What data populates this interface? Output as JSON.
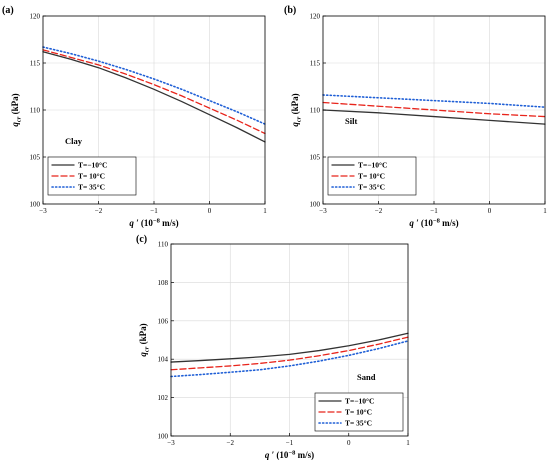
{
  "chart_data": [
    {
      "type": "line",
      "panel_label": "(a)",
      "annotation": "Clay",
      "xlabel_main": "q",
      "xlabel_rest": " (10",
      "xlabel_exp": "−8",
      "xlabel_unit": " m/s)",
      "ylabel_main": "q",
      "ylabel_sub": "cr",
      "ylabel_unit": " (kPa)",
      "xlim": [
        -3,
        1
      ],
      "ylim": [
        100,
        120
      ],
      "xticks": [
        -3,
        -2,
        -1,
        0,
        1
      ],
      "yticks": [
        100,
        105,
        110,
        115,
        120
      ],
      "xtick_labels": [
        "−3",
        "−2",
        "−1",
        "0",
        "1"
      ],
      "ytick_labels": [
        "100",
        "105",
        "110",
        "115",
        "120"
      ],
      "grid": true,
      "legend_position": "bottom-left",
      "x": [
        -3,
        -2.5,
        -2,
        -1.5,
        -1,
        -0.5,
        0,
        0.5,
        1
      ],
      "series": [
        {
          "name": "T=−10°C",
          "color": "#333333",
          "dash": "solid",
          "values": [
            116.2,
            115.4,
            114.5,
            113.4,
            112.2,
            110.9,
            109.5,
            108.1,
            106.6
          ]
        },
        {
          "name": "T=  10°C",
          "color": "#e8241b",
          "dash": "dashed",
          "values": [
            116.4,
            115.6,
            114.8,
            113.8,
            112.7,
            111.5,
            110.2,
            108.9,
            107.5
          ]
        },
        {
          "name": "T=  35°C",
          "color": "#1f5fd6",
          "dash": "dotted",
          "values": [
            116.7,
            116.0,
            115.2,
            114.3,
            113.3,
            112.2,
            111.0,
            109.8,
            108.5
          ]
        }
      ]
    },
    {
      "type": "line",
      "panel_label": "(b)",
      "annotation": "Silt",
      "xlabel_main": "q",
      "xlabel_rest": " (10",
      "xlabel_exp": "−8",
      "xlabel_unit": " m/s)",
      "ylabel_main": "q",
      "ylabel_sub": "cr",
      "ylabel_unit": " (kPa)",
      "xlim": [
        -3,
        1
      ],
      "ylim": [
        100,
        120
      ],
      "xticks": [
        -3,
        -2,
        -1,
        0,
        1
      ],
      "yticks": [
        100,
        105,
        110,
        115,
        120
      ],
      "xtick_labels": [
        "−3",
        "−2",
        "−1",
        "0",
        "1"
      ],
      "ytick_labels": [
        "100",
        "105",
        "110",
        "115",
        "120"
      ],
      "grid": true,
      "legend_position": "bottom-left",
      "x": [
        -3,
        -2,
        -1,
        0,
        1
      ],
      "series": [
        {
          "name": "T=−10°C",
          "color": "#333333",
          "dash": "solid",
          "values": [
            110.0,
            109.7,
            109.3,
            108.9,
            108.5
          ]
        },
        {
          "name": "T=  10°C",
          "color": "#e8241b",
          "dash": "dashed",
          "values": [
            110.8,
            110.4,
            110.0,
            109.6,
            109.3
          ]
        },
        {
          "name": "T=  35°C",
          "color": "#1f5fd6",
          "dash": "dotted",
          "values": [
            111.6,
            111.3,
            111.0,
            110.7,
            110.3
          ]
        }
      ]
    },
    {
      "type": "line",
      "panel_label": "(c)",
      "annotation": "Sand",
      "xlabel_main": "q",
      "xlabel_rest": " (10",
      "xlabel_exp": "−8",
      "xlabel_unit": " m/s)",
      "ylabel_main": "q",
      "ylabel_sub": "cr",
      "ylabel_unit": " (kPa)",
      "xlim": [
        -3,
        1
      ],
      "ylim": [
        100,
        110
      ],
      "xticks": [
        -3,
        -2,
        -1,
        0,
        1
      ],
      "yticks": [
        100,
        102,
        104,
        106,
        108,
        110
      ],
      "xtick_labels": [
        "−3",
        "−2",
        "−1",
        "0",
        "1"
      ],
      "ytick_labels": [
        "100",
        "102",
        "104",
        "106",
        "108",
        "110"
      ],
      "grid": true,
      "legend_position": "bottom-right",
      "x": [
        -3,
        -2.5,
        -2,
        -1.5,
        -1,
        -0.5,
        0,
        0.5,
        1
      ],
      "series": [
        {
          "name": "T=−10°C",
          "color": "#333333",
          "dash": "solid",
          "values": [
            103.85,
            103.93,
            104.02,
            104.12,
            104.25,
            104.45,
            104.7,
            105.0,
            105.35
          ]
        },
        {
          "name": "T=  10°C",
          "color": "#e8241b",
          "dash": "dashed",
          "values": [
            103.45,
            103.55,
            103.65,
            103.78,
            103.95,
            104.18,
            104.45,
            104.78,
            105.15
          ]
        },
        {
          "name": "T=  35°C",
          "color": "#1f5fd6",
          "dash": "dotted",
          "values": [
            103.1,
            103.2,
            103.32,
            103.45,
            103.65,
            103.9,
            104.2,
            104.55,
            104.95
          ]
        }
      ]
    }
  ]
}
